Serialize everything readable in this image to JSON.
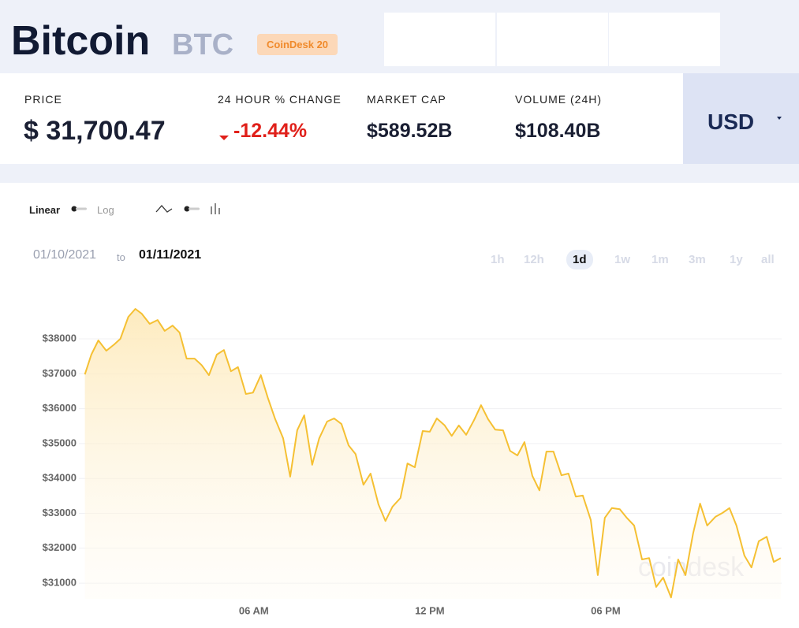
{
  "header": {
    "title": "Bitcoin",
    "symbol": "BTC",
    "badge": "CoinDesk 20"
  },
  "stats": [
    {
      "label": "PRICE",
      "value": "$ 31,700.47"
    },
    {
      "label": "24 HOUR % CHANGE",
      "value": "-12.44%"
    },
    {
      "label": "MARKET CAP",
      "value": "$589.52B"
    },
    {
      "label": "VOLUME (24H)",
      "value": "$108.40B"
    }
  ],
  "currency": "USD",
  "scale_toggle": {
    "left": "Linear",
    "right": "Log"
  },
  "date_range": {
    "from": "01/10/2021",
    "separator": "to",
    "to": "01/11/2021"
  },
  "ranges": [
    "1h",
    "12h",
    "1d",
    "1w",
    "1m",
    "3m",
    "1y",
    "all"
  ],
  "active_range": "1d",
  "watermark": "coindesk",
  "chart_data": {
    "type": "line",
    "color": "#f5c033",
    "grid": true,
    "x": [
      0.24,
      0.46,
      0.7,
      0.97,
      1.24,
      1.45,
      1.72,
      1.96,
      2.18,
      2.45,
      2.72,
      2.96,
      3.23,
      3.47,
      3.71,
      3.98,
      4.22,
      4.47,
      4.74,
      4.98,
      5.22,
      5.46,
      5.73,
      5.97,
      6.24,
      6.48,
      6.73,
      7.0,
      7.24,
      7.48,
      7.72,
      7.99,
      8.23,
      8.5,
      8.74,
      8.99,
      9.23,
      9.47,
      9.74,
      9.98,
      10.25,
      10.49,
      10.73,
      11.0,
      11.24,
      11.49,
      11.76,
      12.0,
      12.24,
      12.51,
      12.75,
      12.99,
      13.24,
      13.51,
      13.75,
      13.99,
      14.23,
      14.5,
      14.74,
      14.99,
      15.23,
      15.5,
      15.74,
      15.98,
      16.22,
      16.49,
      16.73,
      16.98,
      17.22,
      17.49,
      17.73,
      17.97,
      18.21,
      18.48,
      18.72,
      18.97,
      19.24,
      19.48,
      19.72,
      19.96,
      20.23,
      20.47,
      20.72,
      20.98,
      21.22,
      21.46,
      21.74,
      21.98,
      22.22,
      22.46,
      22.73,
      22.97,
      23.22,
      23.49,
      23.73,
      23.97
    ],
    "values": [
      36980,
      37550,
      37955,
      37660,
      37840,
      38000,
      38630,
      38860,
      38720,
      38430,
      38540,
      38230,
      38380,
      38180,
      37435,
      37435,
      37250,
      36960,
      37550,
      37680,
      37070,
      37190,
      36420,
      36460,
      36960,
      36310,
      35700,
      35150,
      34050,
      35380,
      35810,
      34390,
      35150,
      35630,
      35720,
      35560,
      34950,
      34700,
      33820,
      34140,
      33260,
      32780,
      33190,
      33440,
      34430,
      34320,
      35360,
      35340,
      35720,
      35520,
      35220,
      35520,
      35250,
      35670,
      36100,
      35700,
      35400,
      35380,
      34790,
      34660,
      35040,
      34070,
      33660,
      34770,
      34770,
      34090,
      34140,
      33480,
      33510,
      32810,
      31230,
      32870,
      33150,
      33120,
      32870,
      32650,
      31680,
      31720,
      30890,
      31160,
      30590,
      31680,
      31230,
      32420,
      33280,
      32650,
      32900,
      33010,
      33150,
      32650,
      31790,
      31450,
      32200,
      32330,
      31610,
      31720
    ],
    "xlim": [
      0.25,
      24
    ],
    "xticks": [
      {
        "value": 6,
        "label": "06 AM"
      },
      {
        "value": 12,
        "label": "12 PM"
      },
      {
        "value": 18,
        "label": "06 PM"
      }
    ],
    "ylim": [
      30550,
      39130
    ],
    "yticks": [
      {
        "value": 31000,
        "label": "$31000"
      },
      {
        "value": 32000,
        "label": "$32000"
      },
      {
        "value": 33000,
        "label": "$33000"
      },
      {
        "value": 34000,
        "label": "$34000"
      },
      {
        "value": 35000,
        "label": "$35000"
      },
      {
        "value": 36000,
        "label": "$36000"
      },
      {
        "value": 37000,
        "label": "$37000"
      },
      {
        "value": 38000,
        "label": "$38000"
      }
    ]
  }
}
